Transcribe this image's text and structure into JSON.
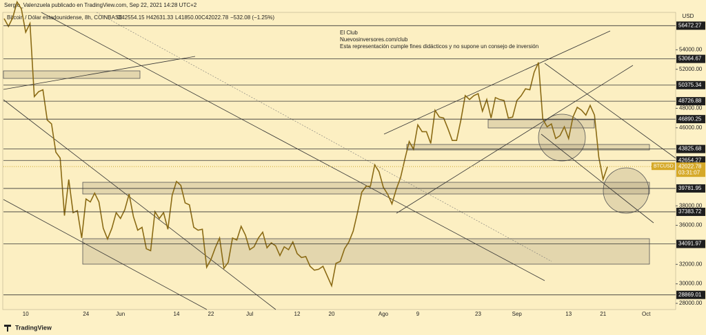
{
  "chart_data": {
    "type": "line",
    "header": {
      "author": "Sergio_Valenzuela publicado en TradingView.com, Sep 22, 2021 14:28 UTC+2",
      "symbol": "Bitcoin / Dólar estadounidense, 8h, COINBASE",
      "ohlc": [
        "O42554.15",
        "H42631.33",
        "L41850.00",
        "C42022.78",
        "−532.08 (−1.25%)"
      ]
    },
    "annotation": [
      "El Club",
      "Nuevosinversores.com/club",
      "Esta representación cumple fines didácticos y no supone un consejo de inversión"
    ],
    "currency": "USD",
    "brand": "TradingView",
    "categories": [
      null,
      null,
      null,
      null,
      null,
      "10",
      null,
      null,
      null,
      null,
      null,
      null,
      null,
      null,
      null,
      null,
      null,
      null,
      null,
      "24",
      null,
      null,
      null,
      null,
      null,
      null,
      null,
      "Jun",
      null,
      null,
      null,
      null,
      null,
      null,
      null,
      null,
      null,
      null,
      null,
      null,
      "14",
      null,
      null,
      null,
      null,
      null,
      null,
      null,
      "22",
      null,
      null,
      null,
      null,
      null,
      null,
      null,
      null,
      "Jul",
      null,
      null,
      null,
      null,
      null,
      null,
      null,
      null,
      null,
      null,
      "12",
      null,
      null,
      null,
      null,
      null,
      null,
      null,
      "20",
      null,
      null,
      null,
      null,
      null,
      null,
      null,
      null,
      null,
      null,
      null,
      "Ago",
      null,
      null,
      null,
      null,
      null,
      null,
      null,
      "9",
      null,
      null,
      null,
      null,
      null,
      null,
      null,
      null,
      null,
      null,
      null,
      null,
      null,
      "23",
      null,
      null,
      null,
      null,
      null,
      null,
      null,
      null,
      "Sep",
      null,
      null,
      null,
      null,
      null,
      null,
      null,
      null,
      null,
      null,
      null,
      "13",
      null,
      null,
      null,
      null,
      null,
      null,
      null,
      "21",
      null,
      null,
      null,
      null,
      null,
      null,
      null,
      null,
      null,
      "Oct"
    ],
    "series": [
      {
        "name": "BTCUSD",
        "color": "#8a6a14",
        "values": [
          57200,
          56400,
          57300,
          58900,
          58200,
          55800,
          56700,
          49200,
          49700,
          49900,
          46800,
          46400,
          43500,
          42900,
          37000,
          40700,
          37300,
          37500,
          34700,
          38700,
          38400,
          39300,
          38400,
          35700,
          34600,
          35700,
          37300,
          36700,
          37600,
          39200,
          36900,
          35500,
          35800,
          33600,
          33400,
          37400,
          36700,
          37300,
          35600,
          39100,
          40500,
          40100,
          38300,
          38100,
          35800,
          35500,
          35600,
          31700,
          32500,
          33700,
          34700,
          31600,
          32200,
          34700,
          34500,
          35900,
          35000,
          33500,
          33800,
          34700,
          35300,
          33700,
          34200,
          33900,
          32900,
          33800,
          33500,
          34300,
          33100,
          32700,
          32800,
          31800,
          31400,
          31500,
          31800,
          30800,
          29800,
          32100,
          32300,
          33600,
          34300,
          35400,
          37300,
          39400,
          40000,
          40000,
          42200,
          41500,
          39900,
          39200,
          38200,
          39700,
          40900,
          42800,
          44600,
          43800,
          46300,
          45600,
          45600,
          44400,
          47800,
          47100,
          47000,
          45900,
          44700,
          44700,
          46800,
          49300,
          48900,
          49300,
          49500,
          47700,
          48900,
          47000,
          49100,
          48900,
          48800,
          47000,
          47100,
          48800,
          49300,
          50000,
          49900,
          51700,
          52700,
          46900,
          46100,
          46400,
          44900,
          45200,
          46100,
          44900,
          47100,
          48100,
          47800,
          47300,
          48300,
          47300,
          43000,
          40700,
          42000,
          null,
          null,
          null,
          null,
          null,
          null,
          null,
          null,
          null
        ]
      }
    ],
    "ylim": [
      27365,
      57834
    ],
    "yticks": [
      {
        "value": 28000,
        "label": "28000.00"
      },
      {
        "value": 30000,
        "label": "30000.00"
      },
      {
        "value": 32000,
        "label": "32000.00"
      },
      {
        "value": 36000,
        "label": "36000.00"
      },
      {
        "value": 38000,
        "label": "38000.00"
      },
      {
        "value": 46000,
        "label": "46000.00"
      },
      {
        "value": 48000,
        "label": "48000.00"
      },
      {
        "value": 52000,
        "label": "52000.00"
      },
      {
        "value": 54000,
        "label": "54000.00"
      }
    ],
    "levels": [
      56472.27,
      53064.67,
      50375.34,
      48726.88,
      46890.25,
      43825.68,
      42654.27,
      39781.95,
      37383.72,
      34091.97,
      28869.01
    ],
    "last_price": {
      "symbol": "BTCUSD",
      "value": 42022.78,
      "countdown": "03:31:07"
    }
  }
}
